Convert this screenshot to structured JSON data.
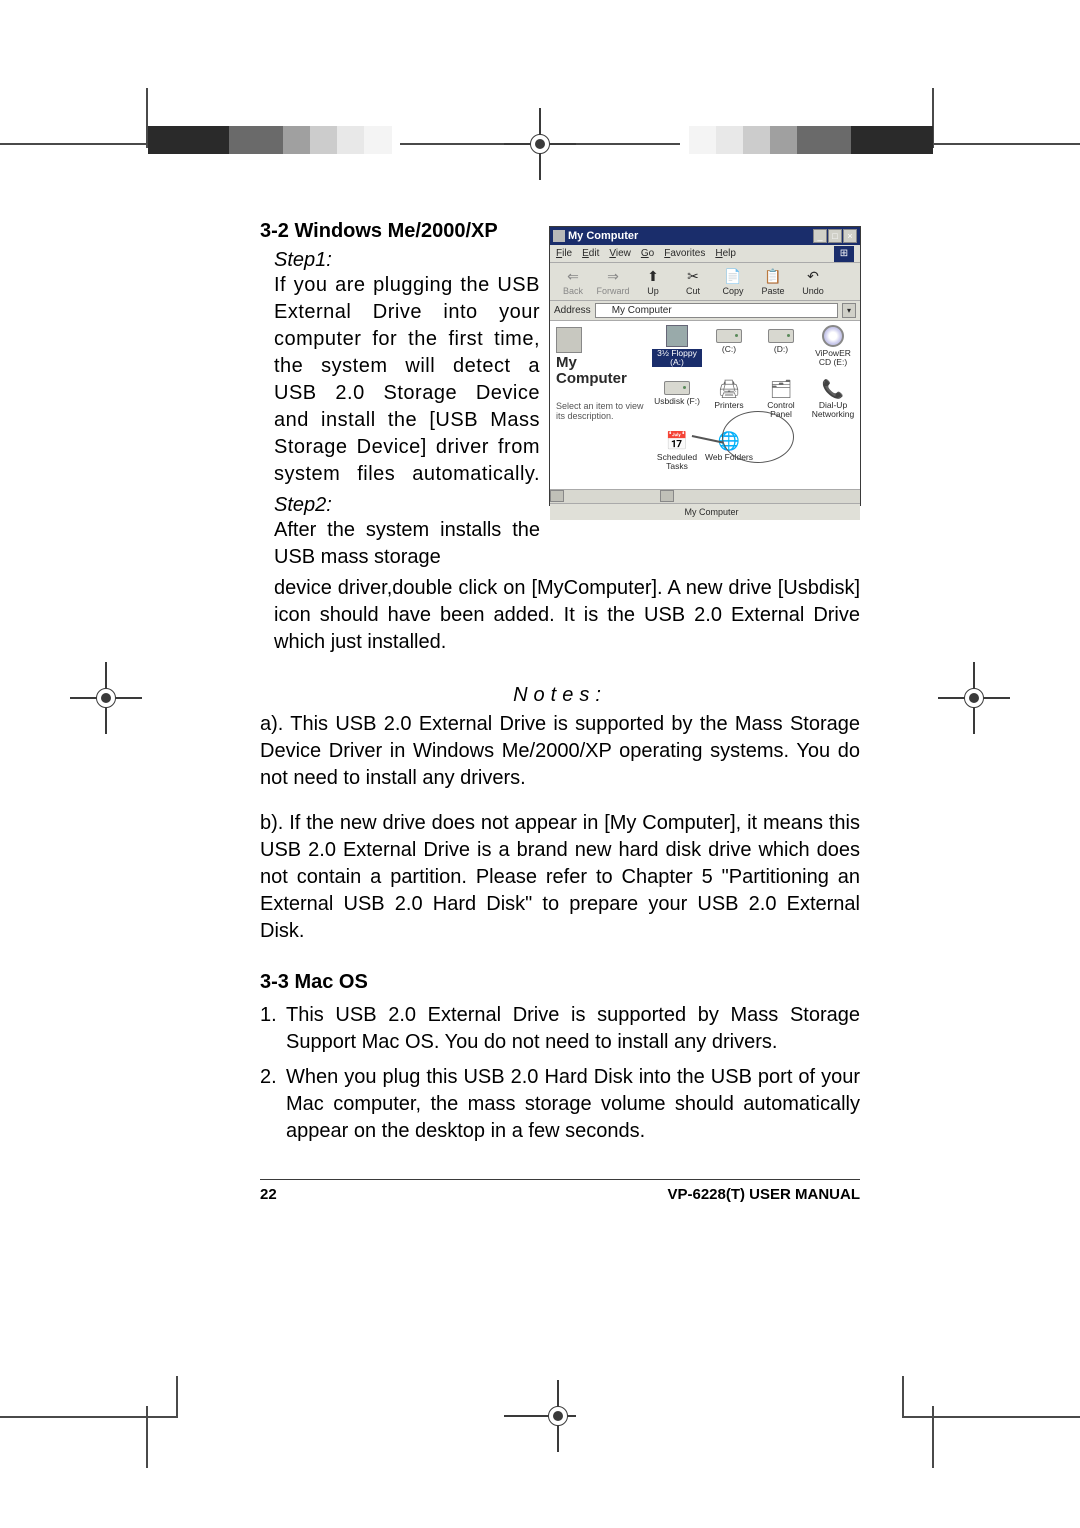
{
  "section_32": "3-2  Windows Me/2000/XP",
  "step1_label": "Step1:",
  "step1_text": "If you are plugging the USB External Drive into your computer for the first time, the system will detect a USB 2.0 Storage Device and install the [USB Mass Storage Device] driver from system files automatically.",
  "step2_label": "Step2:",
  "step2_text_a": "After the system installs the USB mass storage",
  "step2_text_b": "device driver,double click on [MyComputer]. A new drive [Usbdisk] icon should have been added. It is the USB 2.0 External Drive which just installed.",
  "notes_label": "Notes:",
  "note_a": "a). This USB 2.0 External Drive is supported by the Mass Storage Device Driver in Windows Me/2000/XP operating systems. You do not need to install any drivers.",
  "note_b": "b). If the new drive does not appear in [My Computer], it means this USB 2.0 External Drive is a brand new hard disk drive which does not contain a partition. Please refer to Chapter 5 \"Partitioning an External USB 2.0 Hard Disk\" to prepare your USB 2.0 External Disk.",
  "section_33": "3-3  Mac OS",
  "mac_1": "This USB 2.0 External Drive is supported by Mass Storage Support Mac OS. You do not need to install any drivers.",
  "mac_2": "When you plug this USB 2.0 Hard Disk into the USB port of your Mac computer, the mass storage volume should automatically appear on the desktop in a few seconds.",
  "page_num": "22",
  "manual": "VP-6228(T) USER MANUAL",
  "window": {
    "title": "My Computer",
    "menu": [
      "File",
      "Edit",
      "View",
      "Go",
      "Favorites",
      "Help"
    ],
    "toolbar": [
      {
        "label": "Back",
        "glyph": "⇐",
        "disabled": true
      },
      {
        "label": "Forward",
        "glyph": "⇒",
        "disabled": true
      },
      {
        "label": "Up",
        "glyph": "⬆"
      },
      {
        "label": "Cut",
        "glyph": "✂"
      },
      {
        "label": "Copy",
        "glyph": "📄"
      },
      {
        "label": "Paste",
        "glyph": "📋"
      },
      {
        "label": "Undo",
        "glyph": "↶"
      }
    ],
    "address_label": "Address",
    "address_value": "My Computer",
    "left_title": "My Computer",
    "left_hint": "Select an item to view its description.",
    "icons": [
      {
        "label": "3½ Floppy (A:)",
        "type": "floppy",
        "selected": true
      },
      {
        "label": "(C:)",
        "type": "drive"
      },
      {
        "label": "(D:)",
        "type": "drive"
      },
      {
        "label": "ViPowER CD (E:)",
        "type": "cd"
      },
      {
        "label": "Usbdisk (F:)",
        "type": "drive"
      },
      {
        "label": "Printers",
        "type": "glyph",
        "glyph": "🖨"
      },
      {
        "label": "Control Panel",
        "type": "glyph",
        "glyph": "🗂"
      },
      {
        "label": "Dial-Up Networking",
        "type": "glyph",
        "glyph": "📞"
      },
      {
        "label": "Scheduled Tasks",
        "type": "glyph",
        "glyph": "📅",
        "callout": true
      },
      {
        "label": "Web Folders",
        "type": "glyph",
        "glyph": "🌐"
      }
    ],
    "status": "My Computer"
  },
  "reg_colors_dark": "#383838",
  "reg_colors_mid": "#8c8c8c",
  "reg_colors_light": "#d8d8d8"
}
